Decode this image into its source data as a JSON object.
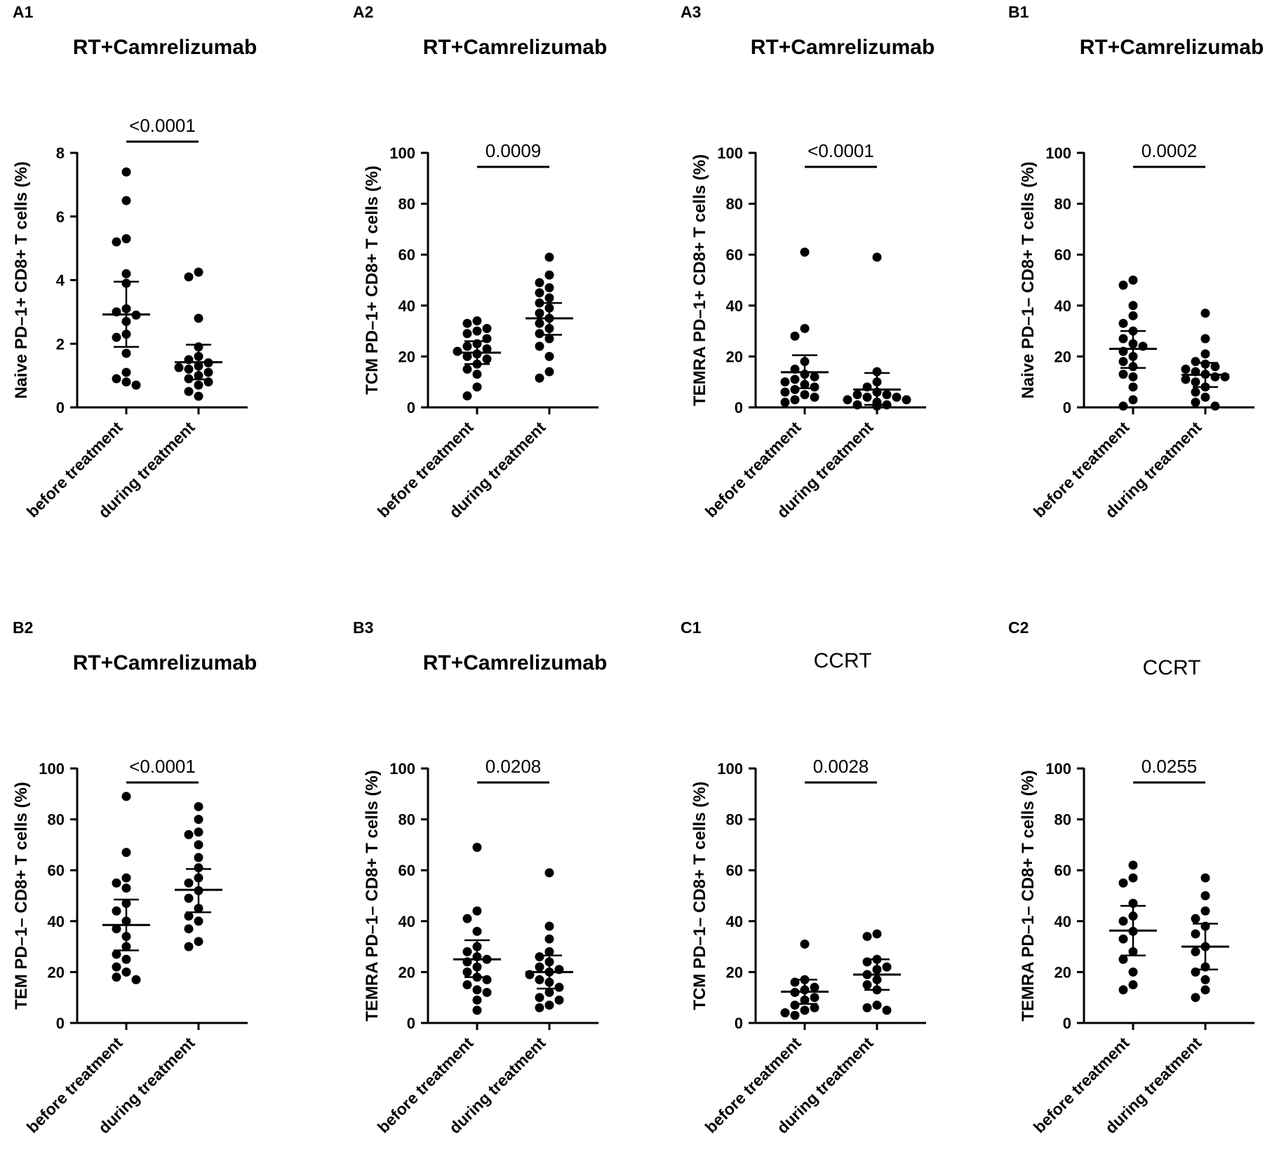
{
  "chart_data": [
    {
      "type": "scatter",
      "panel": "A1",
      "title": "RT+Camrelizumab",
      "ylabel": "Naive PD–1+ CD8+ T cells (%)",
      "ylim": [
        0,
        8
      ],
      "yticks": [
        0,
        2,
        4,
        6,
        8
      ],
      "categories": [
        "before treatment",
        "during treatment"
      ],
      "p_value": "<0.0001",
      "series": [
        {
          "name": "before treatment",
          "values": [
            7.4,
            6.5,
            5.3,
            5.2,
            4.2,
            3.9,
            3.1,
            3.0,
            2.9,
            2.7,
            2.3,
            2.2,
            1.7,
            1.1,
            0.9,
            0.8,
            0.7
          ],
          "mean": 2.92,
          "error_low": 1.9,
          "error_high": 3.95
        },
        {
          "name": "during treatment",
          "values": [
            4.25,
            4.1,
            2.8,
            1.9,
            1.6,
            1.5,
            1.4,
            1.3,
            1.25,
            1.2,
            1.1,
            1.0,
            0.9,
            0.8,
            0.7,
            0.5,
            0.35
          ],
          "mean": 1.42,
          "error_low": 0.88,
          "error_high": 1.97
        }
      ]
    },
    {
      "type": "scatter",
      "panel": "A2",
      "title": "RT+Camrelizumab",
      "ylabel": "TCM PD–1+ CD8+ T cells (%)",
      "ylim": [
        0,
        100
      ],
      "yticks": [
        0,
        20,
        40,
        60,
        80,
        100
      ],
      "categories": [
        "before treatment",
        "during treatment"
      ],
      "p_value": "0.0009",
      "series": [
        {
          "name": "before treatment",
          "values": [
            34,
            33,
            31,
            30,
            29,
            27,
            25,
            24,
            23,
            22,
            21,
            20,
            19,
            17,
            15,
            13,
            8,
            4.5
          ],
          "mean": 21.5,
          "error_low": 17,
          "error_high": 26
        },
        {
          "name": "during treatment",
          "values": [
            59,
            52,
            49,
            47,
            45,
            43,
            41,
            39,
            37,
            35,
            33,
            31,
            29,
            27,
            24,
            20,
            14,
            11.5
          ],
          "mean": 35,
          "error_low": 28.5,
          "error_high": 41
        }
      ]
    },
    {
      "type": "scatter",
      "panel": "A3",
      "title": "RT+Camrelizumab",
      "ylabel": "TEMRA PD–1+ CD8+ T cells (%)",
      "ylim": [
        0,
        100
      ],
      "yticks": [
        0,
        20,
        40,
        60,
        80,
        100
      ],
      "categories": [
        "before treatment",
        "during treatment"
      ],
      "p_value": "<0.0001",
      "series": [
        {
          "name": "before treatment",
          "values": [
            61,
            31,
            28,
            18,
            15,
            13,
            12,
            11,
            10,
            9,
            8,
            7,
            6,
            5,
            4,
            3,
            2
          ],
          "mean": 13.8,
          "error_low": 7.5,
          "error_high": 20.5
        },
        {
          "name": "during treatment",
          "values": [
            59,
            14,
            10,
            8,
            6,
            5,
            5,
            4,
            4,
            3,
            3,
            2,
            2,
            1.5,
            1,
            1,
            0.5
          ],
          "mean": 7,
          "error_low": 1,
          "error_high": 13.5
        }
      ]
    },
    {
      "type": "scatter",
      "panel": "B1",
      "title": "RT+Camrelizumab",
      "ylabel": "Naive PD–1– CD8+ T cells (%)",
      "ylim": [
        0,
        100
      ],
      "yticks": [
        0,
        20,
        40,
        60,
        80,
        100
      ],
      "categories": [
        "before treatment",
        "during treatment"
      ],
      "p_value": "0.0002",
      "series": [
        {
          "name": "before treatment",
          "values": [
            50,
            48,
            40,
            36,
            33,
            30,
            27,
            25,
            24,
            22,
            20,
            18,
            16,
            13,
            12,
            8,
            3,
            0.5
          ],
          "mean": 23,
          "error_low": 15.5,
          "error_high": 30
        },
        {
          "name": "during treatment",
          "values": [
            37,
            27,
            21,
            18,
            17,
            16,
            15,
            14,
            13,
            12,
            12,
            11,
            10,
            8,
            6,
            4,
            2,
            0.5
          ],
          "mean": 12.8,
          "error_low": 8,
          "error_high": 17.5
        }
      ]
    },
    {
      "type": "scatter",
      "panel": "B2",
      "title": "RT+Camrelizumab",
      "ylabel": "TEM PD–1– CD8+ T cells (%)",
      "ylim": [
        0,
        100
      ],
      "yticks": [
        0,
        20,
        40,
        60,
        80,
        100
      ],
      "categories": [
        "before treatment",
        "during treatment"
      ],
      "p_value": "<0.0001",
      "series": [
        {
          "name": "before treatment",
          "values": [
            89,
            67,
            57,
            55,
            53,
            47,
            44,
            40,
            37,
            34,
            30,
            27,
            25,
            22,
            20,
            18,
            17
          ],
          "mean": 38.5,
          "error_low": 28.5,
          "error_high": 48.5
        },
        {
          "name": "during treatment",
          "values": [
            85,
            80,
            75,
            74,
            70,
            65,
            61,
            57,
            55,
            52,
            49,
            45,
            42,
            40,
            37,
            32,
            30
          ],
          "mean": 52.3,
          "error_low": 43.5,
          "error_high": 60.5
        }
      ]
    },
    {
      "type": "scatter",
      "panel": "B3",
      "title": "RT+Camrelizumab",
      "ylabel": "TEMRA PD–1– CD8+ T cells (%)",
      "ylim": [
        0,
        100
      ],
      "yticks": [
        0,
        20,
        40,
        60,
        80,
        100
      ],
      "categories": [
        "before treatment",
        "during treatment"
      ],
      "p_value": "0.0208",
      "series": [
        {
          "name": "before treatment",
          "values": [
            69,
            44,
            41,
            36,
            30,
            28,
            26,
            25,
            24,
            22,
            20,
            18,
            17,
            15,
            13,
            12,
            9,
            5
          ],
          "mean": 25,
          "error_low": 18,
          "error_high": 32.5
        },
        {
          "name": "during treatment",
          "values": [
            59,
            38,
            33,
            28,
            26,
            24,
            22,
            21,
            20,
            19,
            17,
            16,
            14,
            12,
            10,
            9,
            7,
            6
          ],
          "mean": 20,
          "error_low": 13.5,
          "error_high": 26.5
        }
      ]
    },
    {
      "type": "scatter",
      "panel": "C1",
      "title": "CCRT",
      "ylabel": "TCM PD–1– CD8+ T cells (%)",
      "ylim": [
        0,
        100
      ],
      "yticks": [
        0,
        20,
        40,
        60,
        80,
        100
      ],
      "categories": [
        "before treatment",
        "during treatment"
      ],
      "p_value": "0.0028",
      "series": [
        {
          "name": "before treatment",
          "values": [
            31,
            17,
            16,
            14,
            13,
            12,
            10,
            9,
            7,
            6,
            5,
            4,
            3
          ],
          "mean": 12.3,
          "error_low": 7.5,
          "error_high": 17
        },
        {
          "name": "during treatment",
          "values": [
            35,
            34,
            25,
            24,
            22,
            21,
            19,
            17,
            15,
            13,
            7,
            6,
            5
          ],
          "mean": 19,
          "error_low": 13,
          "error_high": 25
        }
      ]
    },
    {
      "type": "scatter",
      "panel": "C2",
      "title": "CCRT",
      "ylabel": "TEMRA PD–1– CD8+ T cells (%)",
      "ylim": [
        0,
        100
      ],
      "yticks": [
        0,
        20,
        40,
        60,
        80,
        100
      ],
      "categories": [
        "before treatment",
        "during treatment"
      ],
      "p_value": "0.0255",
      "series": [
        {
          "name": "before treatment",
          "values": [
            62,
            57,
            55,
            47,
            42,
            40,
            36,
            33,
            28,
            25,
            20,
            15,
            13
          ],
          "mean": 36.3,
          "error_low": 26.5,
          "error_high": 46
        },
        {
          "name": "during treatment",
          "values": [
            57,
            50,
            44,
            41,
            38,
            35,
            30,
            28,
            22,
            20,
            17,
            13,
            10
          ],
          "mean": 30,
          "error_low": 21,
          "error_high": 39
        }
      ]
    }
  ]
}
